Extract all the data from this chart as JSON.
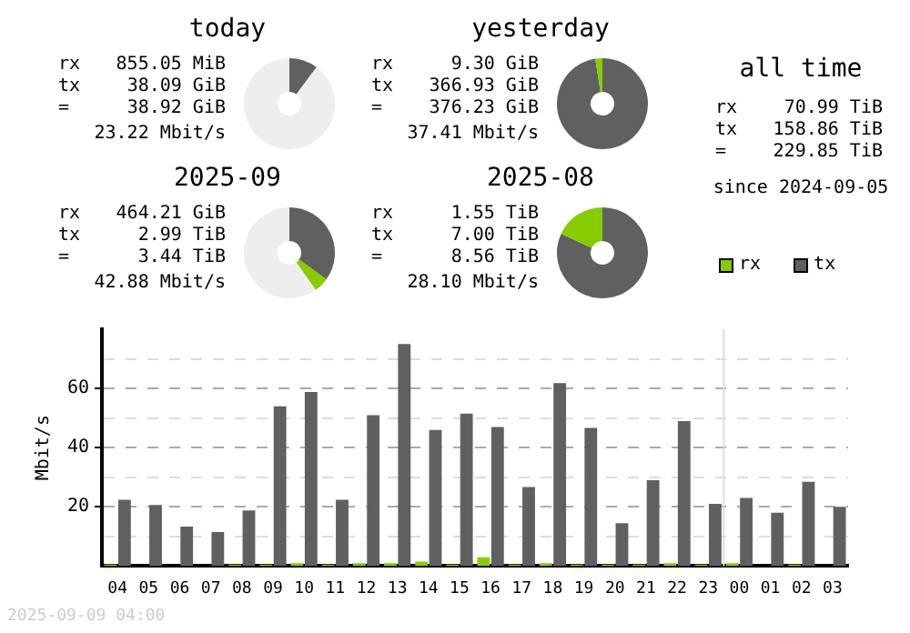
{
  "chart_data": [
    {
      "type": "donut",
      "title": "today",
      "categories": [
        null,
        null,
        null
      ],
      "values": [
        10.1,
        0.2,
        89.7
      ],
      "colors": [
        "#606060",
        "#88cc00",
        "#eeeeee"
      ],
      "annotations": [
        "rx 855.05 MiB",
        "tx 38.09 GiB",
        "= 38.92 GiB",
        "23.22 Mbit/s"
      ]
    },
    {
      "type": "donut",
      "title": "yesterday",
      "categories": [
        null,
        null
      ],
      "values": [
        97.5,
        2.5
      ],
      "colors": [
        "#606060",
        "#88cc00"
      ],
      "annotations": [
        "rx 9.30 GiB",
        "tx 366.93 GiB",
        "= 376.23 GiB",
        "37.41 Mbit/s"
      ]
    },
    {
      "type": "other",
      "title": "all time",
      "annotations": [
        "rx 70.99 TiB",
        "tx 158.86 TiB",
        "= 229.85 TiB",
        "since 2024-09-05"
      ]
    },
    {
      "type": "donut",
      "title": "2025-09",
      "categories": [
        null,
        null,
        null
      ],
      "values": [
        34.9,
        5.3,
        59.8
      ],
      "colors": [
        "#606060",
        "#88cc00",
        "#eeeeee"
      ],
      "annotations": [
        "rx 464.21 GiB",
        "tx 2.99 TiB",
        "= 3.44 TiB",
        "42.88 Mbit/s"
      ]
    },
    {
      "type": "donut",
      "title": "2025-08",
      "categories": [
        null,
        null
      ],
      "values": [
        81.9,
        18.1
      ],
      "colors": [
        "#606060",
        "#88cc00"
      ],
      "annotations": [
        "rx 1.55 TiB",
        "tx 7.00 TiB",
        "= 8.56 TiB",
        "28.10 Mbit/s"
      ]
    },
    {
      "type": "bar",
      "ylabel": "Mbit/s",
      "categories": [
        "04",
        "05",
        "06",
        "07",
        "08",
        "09",
        "10",
        "11",
        "12",
        "13",
        "14",
        "15",
        "16",
        "17",
        "18",
        "19",
        "20",
        "21",
        "22",
        "23",
        "00",
        "01",
        "02",
        "03"
      ],
      "series": [
        {
          "name": "rx",
          "color": "#88cc00",
          "values": [
            0.5,
            0,
            0,
            0,
            0.5,
            0.5,
            1,
            0.5,
            1,
            1,
            1.5,
            0.5,
            3,
            0.5,
            1,
            0.5,
            0.5,
            0.5,
            1,
            0.5,
            1,
            0,
            0.5,
            0
          ]
        },
        {
          "name": "tx",
          "color": "#606060",
          "values": [
            22.4,
            20.6,
            13.3,
            11.5,
            18.8,
            54,
            58.8,
            22.4,
            51,
            75,
            46,
            51.5,
            47,
            26.7,
            61.8,
            46.7,
            14.5,
            29,
            49,
            21,
            23,
            18,
            28.5,
            20
          ]
        }
      ],
      "ylim": [
        0,
        80
      ],
      "yticks": [
        {
          "value": 10,
          "label": null
        },
        20,
        {
          "value": 30,
          "label": null
        },
        40,
        {
          "value": 50,
          "label": null
        },
        60,
        {
          "value": 70,
          "label": null
        }
      ],
      "grid": "y",
      "legend": "top right",
      "ref_lines": [
        {
          "axis": "x",
          "value": "00",
          "color": "#dddddd"
        }
      ],
      "annotations": [
        "2025-09-09 04:00"
      ]
    }
  ]
}
